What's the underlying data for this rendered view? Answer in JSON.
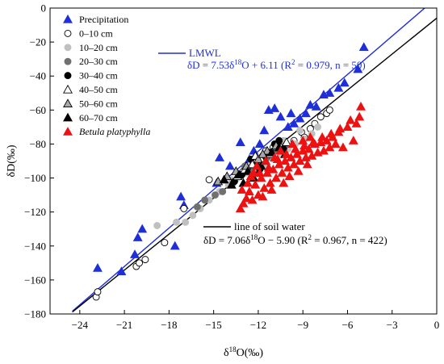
{
  "chart_data": {
    "type": "scatter",
    "xlabel": "δ18O(‰)",
    "ylabel": "δD(‰)",
    "xlim": [
      -26,
      0
    ],
    "ylim": [
      -180,
      0
    ],
    "xticks": [
      -24,
      -21,
      -18,
      -15,
      -12,
      -9,
      -6,
      -3,
      0
    ],
    "yticks": [
      -180,
      -160,
      -140,
      -120,
      -100,
      -80,
      -60,
      -40,
      -20,
      0
    ],
    "xtick_labels": [
      "−24",
      "−21",
      "−18",
      "−15",
      "−12",
      "−9",
      "−6",
      "−3",
      "0"
    ],
    "ytick_labels": [
      "−180",
      "−160",
      "−140",
      "−120",
      "−100",
      "−80",
      "−60",
      "−40",
      "−20",
      "0"
    ],
    "legend_position": "top-left",
    "legend": [
      {
        "label": "Precipitation",
        "marker": "triangle",
        "fill": "#1f2fd8",
        "stroke": "#1f2fd8",
        "italic": false
      },
      {
        "label": "0–10 cm",
        "marker": "circle",
        "fill": "#ffffff",
        "stroke": "#000000",
        "italic": false
      },
      {
        "label": "10–20 cm",
        "marker": "circle",
        "fill": "#c0c0c0",
        "stroke": "#c0c0c0",
        "italic": false
      },
      {
        "label": "20–30 cm",
        "marker": "circle",
        "fill": "#707070",
        "stroke": "#707070",
        "italic": false
      },
      {
        "label": "30–40 cm",
        "marker": "circle",
        "fill": "#000000",
        "stroke": "#000000",
        "italic": false
      },
      {
        "label": "40–50 cm",
        "marker": "triangle",
        "fill": "#ffffff",
        "stroke": "#000000",
        "italic": false
      },
      {
        "label": "50–60 cm",
        "marker": "triangle",
        "fill": "#a8a8a8",
        "stroke": "#000000",
        "italic": false
      },
      {
        "label": "60–70 cm",
        "marker": "triangle",
        "fill": "#000000",
        "stroke": "#000000",
        "italic": false
      },
      {
        "label": "Betula platyphylla",
        "marker": "triangle",
        "fill": "#ee1111",
        "stroke": "#ee1111",
        "italic": true
      }
    ],
    "lines": [
      {
        "name": "LMWL",
        "slope": 7.53,
        "intercept": 6.11,
        "x_range": [
          -24.5,
          -0.8
        ],
        "color": "#1f2fd8",
        "label": "LMWL",
        "equation": "δD = 7.53δ18O + 6.11 (R2 = 0.979, n = 50)"
      },
      {
        "name": "line of soil water",
        "slope": 7.06,
        "intercept": -5.9,
        "x_range": [
          -24.5,
          0
        ],
        "color": "#000000",
        "label": "line of soil water",
        "equation": "δD = 7.06δ18O − 5.90 (R2 = 0.967, n = 422)"
      }
    ],
    "series": [
      {
        "name": "Precipitation",
        "marker": "triangle",
        "fill": "#1f2fd8",
        "stroke": "#1f2fd8",
        "points": [
          [
            -22.8,
            -153
          ],
          [
            -21.2,
            -155
          ],
          [
            -20.3,
            -145
          ],
          [
            -19.8,
            -130
          ],
          [
            -20.1,
            -135
          ],
          [
            -17.6,
            -140
          ],
          [
            -17.2,
            -111
          ],
          [
            -17.0,
            -116
          ],
          [
            -14.8,
            -103
          ],
          [
            -13.9,
            -93
          ],
          [
            -14.6,
            -88
          ],
          [
            -13.2,
            -79
          ],
          [
            -12.6,
            -89
          ],
          [
            -12.3,
            -84
          ],
          [
            -11.9,
            -80
          ],
          [
            -11.6,
            -72
          ],
          [
            -11.3,
            -60
          ],
          [
            -10.5,
            -64
          ],
          [
            -10.0,
            -70
          ],
          [
            -9.6,
            -68
          ],
          [
            -9.2,
            -65
          ],
          [
            -8.8,
            -62
          ],
          [
            -8.5,
            -57
          ],
          [
            -8.1,
            -58
          ],
          [
            -7.6,
            -51
          ],
          [
            -7.2,
            -50
          ],
          [
            -6.6,
            -47
          ],
          [
            -6.2,
            -44
          ],
          [
            -5.3,
            -36
          ],
          [
            -4.9,
            -23
          ],
          [
            -10.9,
            -59
          ],
          [
            -9.8,
            -62
          ]
        ]
      },
      {
        "name": "0–10 cm",
        "marker": "circle",
        "fill": "#ffffff",
        "stroke": "#000000",
        "points": [
          [
            -22.9,
            -170
          ],
          [
            -22.8,
            -167
          ],
          [
            -20.2,
            -152
          ],
          [
            -20.0,
            -150
          ],
          [
            -19.6,
            -148
          ],
          [
            -18.3,
            -138
          ],
          [
            -17.0,
            -118
          ],
          [
            -15.3,
            -101
          ],
          [
            -14.0,
            -102
          ],
          [
            -12.4,
            -90
          ],
          [
            -11.5,
            -84
          ],
          [
            -11.0,
            -82
          ],
          [
            -10.2,
            -80
          ],
          [
            -9.6,
            -78
          ],
          [
            -9.1,
            -73
          ],
          [
            -8.5,
            -71
          ],
          [
            -8.2,
            -68
          ],
          [
            -7.8,
            -64
          ],
          [
            -7.4,
            -62
          ],
          [
            -7.2,
            -60
          ],
          [
            -10.8,
            -86
          ],
          [
            -13.0,
            -96
          ],
          [
            -8.9,
            -76
          ]
        ]
      },
      {
        "name": "10–20 cm",
        "marker": "circle",
        "fill": "#c0c0c0",
        "stroke": "#c0c0c0",
        "points": [
          [
            -18.8,
            -128
          ],
          [
            -17.5,
            -126
          ],
          [
            -16.4,
            -122
          ],
          [
            -15.9,
            -118
          ],
          [
            -15.3,
            -113
          ],
          [
            -14.6,
            -108
          ],
          [
            -14.0,
            -104
          ],
          [
            -13.4,
            -100
          ],
          [
            -12.8,
            -97
          ],
          [
            -12.2,
            -95
          ],
          [
            -11.6,
            -92
          ],
          [
            -11.0,
            -89
          ],
          [
            -10.5,
            -86
          ],
          [
            -10.0,
            -83
          ],
          [
            -9.5,
            -80
          ],
          [
            -8.9,
            -77
          ],
          [
            -8.4,
            -74
          ],
          [
            -8.0,
            -70
          ],
          [
            -9.2,
            -72
          ],
          [
            -10.3,
            -78
          ],
          [
            -13.8,
            -101
          ],
          [
            -16.9,
            -126
          ],
          [
            -12.5,
            -92
          ]
        ]
      },
      {
        "name": "20–30 cm",
        "marker": "circle",
        "fill": "#707070",
        "stroke": "#707070",
        "points": [
          [
            -16.1,
            -117
          ],
          [
            -15.6,
            -113
          ],
          [
            -14.4,
            -108
          ],
          [
            -13.7,
            -103
          ],
          [
            -13.2,
            -99
          ],
          [
            -12.6,
            -95
          ],
          [
            -11.9,
            -91
          ],
          [
            -11.4,
            -88
          ],
          [
            -10.8,
            -84
          ],
          [
            -10.2,
            -81
          ],
          [
            -12.9,
            -93
          ],
          [
            -14.9,
            -110
          ]
        ]
      },
      {
        "name": "30–40 cm",
        "marker": "circle",
        "fill": "#000000",
        "stroke": "#000000",
        "points": [
          [
            -13.6,
            -102
          ],
          [
            -13.1,
            -98
          ],
          [
            -12.5,
            -89
          ],
          [
            -12.1,
            -93
          ],
          [
            -11.7,
            -87
          ],
          [
            -11.3,
            -85
          ],
          [
            -10.9,
            -80
          ],
          [
            -10.6,
            -78
          ],
          [
            -10.3,
            -83
          ],
          [
            -11.9,
            -95
          ]
        ]
      },
      {
        "name": "40–50 cm",
        "marker": "triangle",
        "fill": "#ffffff",
        "stroke": "#000000",
        "points": [
          [
            -13.4,
            -99
          ],
          [
            -12.9,
            -95
          ],
          [
            -12.4,
            -92
          ],
          [
            -11.8,
            -89
          ],
          [
            -11.2,
            -86
          ],
          [
            -10.7,
            -82
          ],
          [
            -10.1,
            -79
          ],
          [
            -12.2,
            -87
          ]
        ]
      },
      {
        "name": "50–60 cm",
        "marker": "triangle",
        "fill": "#a8a8a8",
        "stroke": "#000000",
        "points": [
          [
            -14.7,
            -102
          ],
          [
            -14.1,
            -99
          ],
          [
            -13.5,
            -96
          ],
          [
            -12.8,
            -93
          ],
          [
            -12.0,
            -89
          ],
          [
            -11.4,
            -84
          ],
          [
            -10.8,
            -81
          ],
          [
            -11.7,
            -86
          ]
        ]
      },
      {
        "name": "60–70 cm",
        "marker": "triangle",
        "fill": "#000000",
        "stroke": "#000000",
        "points": [
          [
            -14.3,
            -101
          ],
          [
            -13.8,
            -104
          ],
          [
            -13.3,
            -98
          ],
          [
            -12.7,
            -96
          ],
          [
            -12.3,
            -100
          ],
          [
            -11.8,
            -93
          ],
          [
            -11.5,
            -90
          ],
          [
            -11.1,
            -85
          ],
          [
            -10.6,
            -82
          ],
          [
            -10.2,
            -86
          ],
          [
            -12.0,
            -97
          ],
          [
            -13.0,
            -103
          ]
        ]
      },
      {
        "name": "Betula platyphylla",
        "marker": "triangle",
        "fill": "#ee1111",
        "stroke": "#ee1111",
        "points": [
          [
            -13.2,
            -118
          ],
          [
            -13.0,
            -115
          ],
          [
            -12.8,
            -112
          ],
          [
            -12.6,
            -108
          ],
          [
            -12.4,
            -113
          ],
          [
            -12.2,
            -104
          ],
          [
            -12.0,
            -110
          ],
          [
            -11.8,
            -100
          ],
          [
            -11.6,
            -106
          ],
          [
            -11.4,
            -97
          ],
          [
            -11.2,
            -103
          ],
          [
            -11.0,
            -95
          ],
          [
            -10.8,
            -100
          ],
          [
            -10.6,
            -92
          ],
          [
            -10.4,
            -97
          ],
          [
            -10.2,
            -90
          ],
          [
            -10.0,
            -94
          ],
          [
            -9.8,
            -88
          ],
          [
            -9.6,
            -92
          ],
          [
            -9.4,
            -86
          ],
          [
            -9.2,
            -90
          ],
          [
            -9.0,
            -84
          ],
          [
            -8.8,
            -88
          ],
          [
            -8.6,
            -83
          ],
          [
            -8.4,
            -87
          ],
          [
            -8.2,
            -80
          ],
          [
            -8.0,
            -85
          ],
          [
            -7.8,
            -79
          ],
          [
            -7.6,
            -84
          ],
          [
            -7.4,
            -78
          ],
          [
            -7.2,
            -82
          ],
          [
            -7.0,
            -76
          ],
          [
            -6.8,
            -80
          ],
          [
            -6.6,
            -73
          ],
          [
            -6.3,
            -82
          ],
          [
            -6.0,
            -70
          ],
          [
            -5.8,
            -66
          ],
          [
            -5.6,
            -78
          ],
          [
            -5.4,
            -68
          ],
          [
            -5.2,
            -64
          ],
          [
            -12.5,
            -99
          ],
          [
            -11.9,
            -97
          ],
          [
            -11.3,
            -94
          ],
          [
            -10.7,
            -89
          ],
          [
            -10.1,
            -86
          ],
          [
            -9.5,
            -83
          ],
          [
            -8.9,
            -81
          ],
          [
            -8.3,
            -79
          ],
          [
            -7.7,
            -76
          ],
          [
            -7.1,
            -74
          ],
          [
            -6.5,
            -71
          ],
          [
            -10.5,
            -84
          ],
          [
            -9.7,
            -80
          ],
          [
            -9.0,
            -78
          ],
          [
            -8.5,
            -76
          ],
          [
            -12.1,
            -93
          ],
          [
            -11.5,
            -90
          ],
          [
            -10.9,
            -88
          ],
          [
            -5.1,
            -58
          ],
          [
            -11.7,
            -111
          ],
          [
            -11.1,
            -107
          ],
          [
            -10.3,
            -103
          ],
          [
            -9.3,
            -96
          ],
          [
            -8.7,
            -92
          ],
          [
            -13.1,
            -107
          ],
          [
            -12.7,
            -103
          ],
          [
            -12.3,
            -97
          ],
          [
            -9.9,
            -99
          ]
        ]
      }
    ]
  }
}
